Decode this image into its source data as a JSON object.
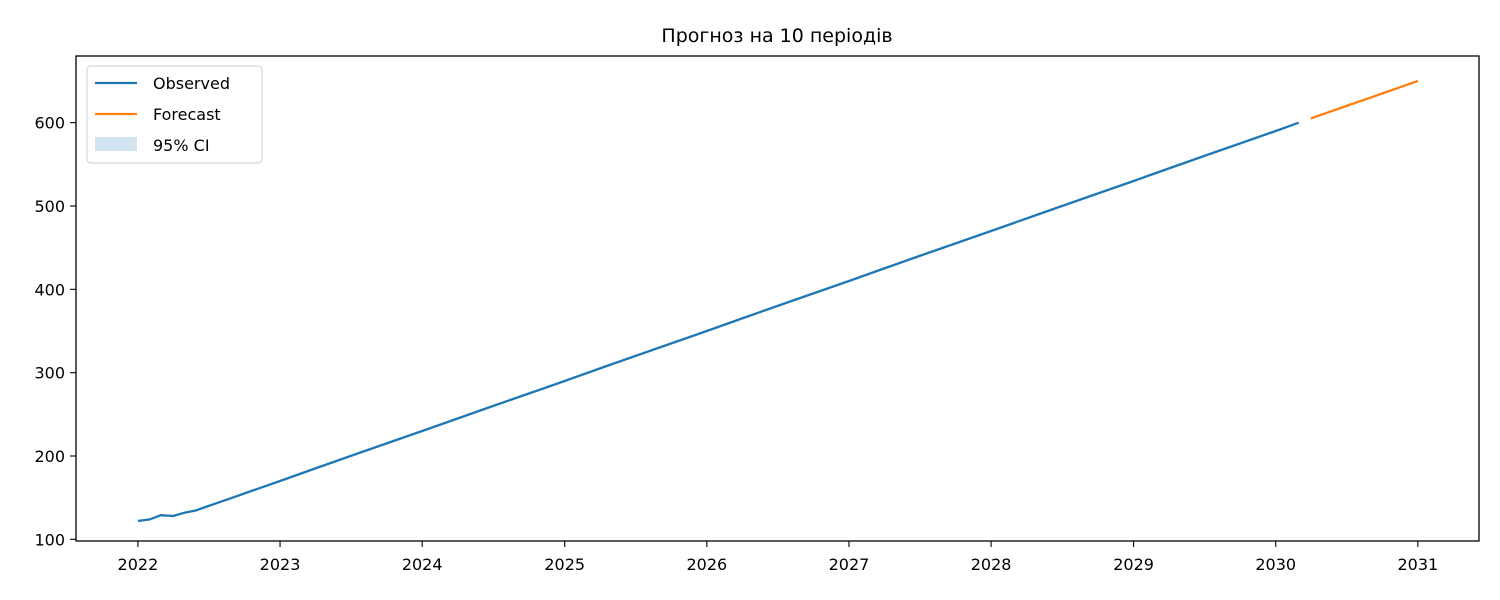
{
  "chart_data": {
    "type": "line",
    "title": "Прогноз на 10 періодів",
    "xlabel": "",
    "ylabel": "",
    "x_axis_type": "date",
    "xlim": [
      "2021-07-26",
      "2031-06-07"
    ],
    "ylim": [
      98,
      680
    ],
    "x_ticks": [
      "2022",
      "2023",
      "2024",
      "2025",
      "2026",
      "2027",
      "2028",
      "2029",
      "2030",
      "2031"
    ],
    "y_ticks": [
      100,
      200,
      300,
      400,
      500,
      600
    ],
    "grid": false,
    "legend_position": "top-left",
    "legend": [
      "Observed",
      "Forecast",
      "95% CI"
    ],
    "series": [
      {
        "name": "Observed",
        "color": "#1f77b4",
        "points": [
          [
            "2022-01",
            122
          ],
          [
            "2022-02",
            124
          ],
          [
            "2022-03",
            129
          ],
          [
            "2022-04",
            128
          ],
          [
            "2022-05",
            132
          ],
          [
            "2022-06",
            135
          ],
          [
            "2022-07",
            140
          ],
          [
            "2022-08",
            145
          ],
          [
            "2022-09",
            150
          ],
          [
            "2022-10",
            155
          ],
          [
            "2022-11",
            160
          ],
          [
            "2022-12",
            165
          ],
          [
            "2023-01",
            170
          ],
          [
            "2023-04",
            185
          ],
          [
            "2023-07",
            200
          ],
          [
            "2023-10",
            215
          ],
          [
            "2024-01",
            230
          ],
          [
            "2024-04",
            245
          ],
          [
            "2024-07",
            260
          ],
          [
            "2024-10",
            275
          ],
          [
            "2025-01",
            290
          ],
          [
            "2025-04",
            305
          ],
          [
            "2025-07",
            320
          ],
          [
            "2025-10",
            335
          ],
          [
            "2026-01",
            350
          ],
          [
            "2026-04",
            365
          ],
          [
            "2026-07",
            380
          ],
          [
            "2026-10",
            395
          ],
          [
            "2027-01",
            410
          ],
          [
            "2027-04",
            425
          ],
          [
            "2027-07",
            440
          ],
          [
            "2027-10",
            455
          ],
          [
            "2028-01",
            470
          ],
          [
            "2028-04",
            485
          ],
          [
            "2028-07",
            500
          ],
          [
            "2028-10",
            515
          ],
          [
            "2029-01",
            530
          ],
          [
            "2029-04",
            545
          ],
          [
            "2029-07",
            560
          ],
          [
            "2029-10",
            575
          ],
          [
            "2030-01",
            590
          ],
          [
            "2030-03",
            600
          ]
        ]
      },
      {
        "name": "Forecast",
        "color": "#ff7f0e",
        "points": [
          [
            "2030-04",
            605
          ],
          [
            "2030-05",
            610
          ],
          [
            "2030-06",
            615
          ],
          [
            "2030-07",
            620
          ],
          [
            "2030-08",
            625
          ],
          [
            "2030-09",
            630
          ],
          [
            "2030-10",
            635
          ],
          [
            "2030-11",
            640
          ],
          [
            "2030-12",
            645
          ],
          [
            "2031-01",
            650
          ]
        ]
      }
    ],
    "ci": {
      "name": "95% CI",
      "color": "#1f77b4",
      "opacity": 0.2,
      "lower": [
        [
          "2030-04",
          605
        ],
        [
          "2030-05",
          610
        ],
        [
          "2030-06",
          615
        ],
        [
          "2030-07",
          620
        ],
        [
          "2030-08",
          625
        ],
        [
          "2030-09",
          630
        ],
        [
          "2030-10",
          635
        ],
        [
          "2030-11",
          640
        ],
        [
          "2030-12",
          645
        ],
        [
          "2031-01",
          649
        ]
      ],
      "upper": [
        [
          "2030-04",
          605
        ],
        [
          "2030-05",
          610
        ],
        [
          "2030-06",
          615
        ],
        [
          "2030-07",
          620
        ],
        [
          "2030-08",
          625
        ],
        [
          "2030-09",
          630
        ],
        [
          "2030-10",
          635
        ],
        [
          "2030-11",
          640
        ],
        [
          "2030-12",
          645
        ],
        [
          "2031-01",
          651
        ]
      ]
    }
  }
}
